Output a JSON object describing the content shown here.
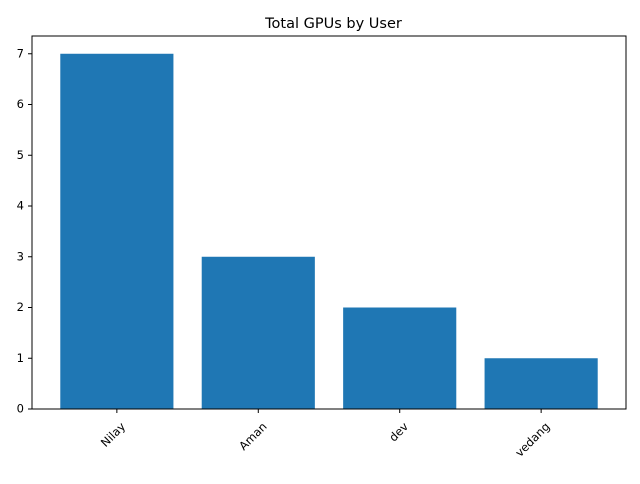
{
  "chart_data": {
    "type": "bar",
    "title": "Total GPUs by User",
    "xlabel": "",
    "ylabel": "",
    "categories": [
      "Nilay",
      "Aman",
      "dev",
      "vedang"
    ],
    "values": [
      7,
      3,
      2,
      1
    ],
    "ylim": [
      0,
      7.35
    ],
    "yticks": [
      0,
      1,
      2,
      3,
      4,
      5,
      6,
      7
    ],
    "bar_color": "#1f77b4",
    "grid": false,
    "legend": "none",
    "x_tick_rotation_deg": 45
  }
}
